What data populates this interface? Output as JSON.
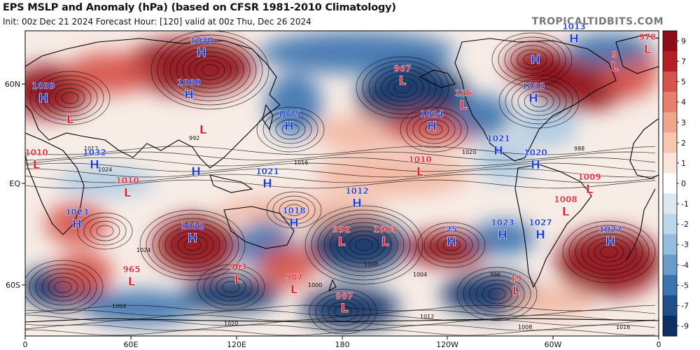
{
  "header": {
    "title": "EPS MSLP and Anomaly (hPa) (based on CFSR 1981-2010 Climatology)",
    "subtitle": "Init: 00z Dec 21 2024   Forecast Hour: [120]   valid at 00z Thu, Dec 26 2024",
    "brand": "TROPICALTIDBITS.COM"
  },
  "colors": {
    "positive_strong": "#8f0d16",
    "positive_mid": "#d6544c",
    "positive_light": "#f2b6a2",
    "negative_strong": "#0d2f66",
    "negative_mid": "#3d74b0",
    "negative_light": "#a9c9e3",
    "high_label": "#1638d8",
    "low_label": "#e01f2d"
  },
  "axes": {
    "lat_labels": [
      "60N",
      "EQ",
      "60S"
    ],
    "lon_labels": [
      "0",
      "60E",
      "120E",
      "180",
      "120W",
      "60W",
      "0"
    ]
  },
  "colorbar": {
    "ticks": [
      "9",
      "7",
      "5",
      "4",
      "3",
      "2",
      "1",
      "0",
      "-1",
      "-2",
      "-3",
      "-4",
      "-5",
      "-7",
      "-9"
    ],
    "colors": [
      "#8f0d16",
      "#b52026",
      "#d6544c",
      "#e77f6c",
      "#f0a48b",
      "#f6c6b2",
      "#fbe4d8",
      "#ffffff",
      "#dbe8f2",
      "#bcd6ea",
      "#93bcdd",
      "#6a9ccb",
      "#3d74b0",
      "#1e4f8a",
      "#0d2f66"
    ]
  },
  "centers": [
    {
      "type": "H",
      "value": "1030"
    },
    {
      "type": "H",
      "value": "1039"
    },
    {
      "type": "H",
      "value": "1060"
    },
    {
      "type": "L",
      "value": ""
    },
    {
      "type": "L",
      "value": ""
    },
    {
      "type": "H",
      "value": "1025"
    },
    {
      "type": "L",
      "value": "967"
    },
    {
      "type": "H",
      "value": "1024"
    },
    {
      "type": "L",
      "value": "126"
    },
    {
      "type": "H",
      "value": "1013"
    },
    {
      "type": "H",
      "value": ""
    },
    {
      "type": "H",
      "value": "1033"
    },
    {
      "type": "L",
      "value": "9"
    },
    {
      "type": "L",
      "value": "978"
    },
    {
      "type": "L",
      "value": "1010"
    },
    {
      "type": "H",
      "value": "1032"
    },
    {
      "type": "H",
      "value": ""
    },
    {
      "type": "L",
      "value": "1010"
    },
    {
      "type": "H",
      "value": "1021"
    },
    {
      "type": "L",
      "value": "1010"
    },
    {
      "type": "H",
      "value": "1021"
    },
    {
      "type": "H",
      "value": "1020"
    },
    {
      "type": "L",
      "value": "1009"
    },
    {
      "type": "H",
      "value": "1012"
    },
    {
      "type": "L",
      "value": "1008"
    },
    {
      "type": "H",
      "value": "1023"
    },
    {
      "type": "H",
      "value": "1032"
    },
    {
      "type": "H",
      "value": "1018"
    },
    {
      "type": "L",
      "value": "992"
    },
    {
      "type": "L",
      "value": "1003"
    },
    {
      "type": "H",
      "value": "25"
    },
    {
      "type": "H",
      "value": "1023"
    },
    {
      "type": "H",
      "value": "1027"
    },
    {
      "type": "H",
      "value": "1027"
    },
    {
      "type": "L",
      "value": "965"
    },
    {
      "type": "L",
      "value": "963"
    },
    {
      "type": "L",
      "value": "987"
    },
    {
      "type": "L",
      "value": "19"
    },
    {
      "type": "L",
      "value": "987"
    }
  ],
  "isobar_labels": [
    "1012",
    "1016",
    "1020",
    "1024",
    "1008",
    "1004",
    "1000",
    "996",
    "992",
    "988"
  ]
}
